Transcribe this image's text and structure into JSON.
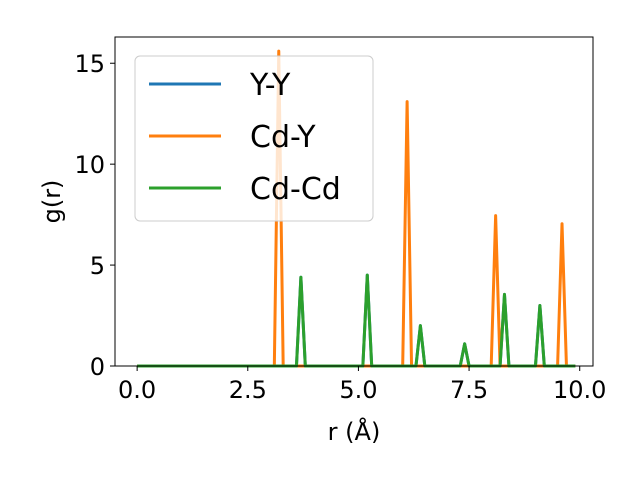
{
  "chart_data": {
    "type": "line",
    "xlabel": "r (Å)",
    "ylabel": "g(r)",
    "xlim": [
      -0.5,
      10.3
    ],
    "ylim": [
      0,
      16.3
    ],
    "xticks": [
      0.0,
      2.5,
      5.0,
      7.5,
      10.0
    ],
    "xtick_labels": [
      "0.0",
      "2.5",
      "5.0",
      "7.5",
      "10.0"
    ],
    "yticks": [
      0,
      5,
      10,
      15
    ],
    "ytick_labels": [
      "0",
      "5",
      "10",
      "15"
    ],
    "grid": false,
    "legend_position": "upper-left",
    "series": [
      {
        "name": "Y-Y",
        "color": "#1f77b4",
        "x": [
          0.0,
          3.6,
          3.7,
          3.8,
          5.1,
          5.2,
          5.3,
          6.3,
          6.4,
          6.5,
          7.3,
          7.4,
          7.5,
          8.2,
          8.3,
          8.4,
          9.0,
          9.1,
          9.2,
          9.9
        ],
        "y": [
          0,
          0,
          4.4,
          0,
          0,
          4.5,
          0,
          0,
          2.0,
          0,
          0,
          1.1,
          0,
          0,
          3.55,
          0,
          0,
          3.0,
          0,
          0
        ]
      },
      {
        "name": "Cd-Y",
        "color": "#ff7f0e",
        "x": [
          0.0,
          3.1,
          3.2,
          3.3,
          6.0,
          6.1,
          6.2,
          8.0,
          8.1,
          8.2,
          9.5,
          9.6,
          9.7,
          9.9
        ],
        "y": [
          0,
          0,
          15.6,
          0,
          0,
          13.1,
          0,
          0,
          7.45,
          0,
          0,
          7.05,
          0,
          0
        ]
      },
      {
        "name": "Cd-Cd",
        "color": "#2ca02c",
        "x": [
          0.0,
          3.6,
          3.7,
          3.8,
          5.1,
          5.2,
          5.3,
          6.3,
          6.4,
          6.5,
          7.3,
          7.4,
          7.5,
          8.2,
          8.3,
          8.4,
          9.0,
          9.1,
          9.2,
          9.9
        ],
        "y": [
          0,
          0,
          4.4,
          0,
          0,
          4.5,
          0,
          0,
          2.0,
          0,
          0,
          1.1,
          0,
          0,
          3.55,
          0,
          0,
          3.0,
          0,
          0
        ]
      }
    ]
  }
}
